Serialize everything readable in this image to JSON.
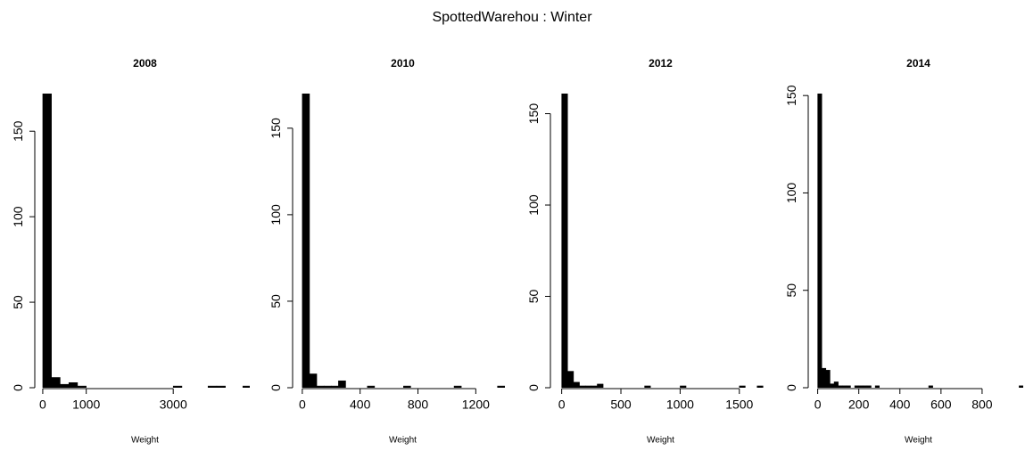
{
  "title": "SpottedWarehou : Winter",
  "chart_data": [
    {
      "type": "histogram",
      "title": "2008",
      "x_label": "Weight",
      "color": "#000000",
      "bins": [
        0,
        200,
        400,
        600,
        800,
        1000,
        1200,
        1400,
        1600,
        1800,
        2000,
        2200,
        2400,
        2600,
        2800,
        3000,
        3200,
        3400,
        3600,
        3800,
        4000,
        4200,
        4400,
        4600,
        4800
      ],
      "values": [
        172,
        6,
        2,
        3,
        1,
        0,
        0,
        0,
        0,
        0,
        0,
        0,
        0,
        0,
        0,
        1,
        0,
        0,
        0,
        1,
        1,
        0,
        0,
        1
      ],
      "xlim": [
        -60,
        4760
      ],
      "xticks": [
        0,
        1000,
        3000
      ],
      "ylim": [
        0,
        172
      ],
      "yticks": [
        0,
        50,
        100,
        150
      ]
    },
    {
      "type": "histogram",
      "title": "2010",
      "x_label": "Weight",
      "color": "#000000",
      "bins": [
        0,
        50,
        100,
        150,
        200,
        250,
        300,
        350,
        400,
        450,
        500,
        550,
        600,
        650,
        700,
        750,
        800,
        850,
        900,
        950,
        1000,
        1050,
        1100,
        1150,
        1200,
        1250,
        1300,
        1350,
        1400
      ],
      "values": [
        170,
        8,
        1,
        1,
        1,
        4,
        0,
        0,
        0,
        1,
        0,
        0,
        0,
        0,
        1,
        0,
        0,
        0,
        0,
        0,
        0,
        1,
        0,
        0,
        0,
        0,
        0,
        1
      ],
      "xlim": [
        -30,
        1420
      ],
      "xticks": [
        0,
        400,
        800,
        1200
      ],
      "ylim": [
        0,
        170
      ],
      "yticks": [
        0,
        50,
        100,
        150
      ]
    },
    {
      "type": "histogram",
      "title": "2012",
      "x_label": "Weight",
      "color": "#000000",
      "bins": [
        0,
        50,
        100,
        150,
        200,
        250,
        300,
        350,
        400,
        450,
        500,
        550,
        600,
        650,
        700,
        750,
        800,
        850,
        900,
        950,
        1000,
        1050,
        1100,
        1150,
        1200,
        1250,
        1300,
        1350,
        1400,
        1450,
        1500,
        1550,
        1600,
        1650,
        1700
      ],
      "values": [
        161,
        9,
        3,
        1,
        1,
        1,
        2,
        0,
        0,
        0,
        0,
        0,
        0,
        0,
        1,
        0,
        0,
        0,
        0,
        0,
        1,
        0,
        0,
        0,
        0,
        0,
        0,
        0,
        0,
        0,
        1,
        0,
        0,
        1
      ],
      "xlim": [
        -50,
        1720
      ],
      "xticks": [
        0,
        500,
        1000,
        1500
      ],
      "ylim": [
        0,
        161
      ],
      "yticks": [
        0,
        50,
        100,
        150
      ]
    },
    {
      "type": "histogram",
      "title": "2014",
      "x_label": "Weight",
      "color": "#000000",
      "bins": [
        0,
        20,
        40,
        60,
        80,
        100,
        120,
        140,
        160,
        180,
        200,
        220,
        240,
        260,
        280,
        300,
        320,
        340,
        360,
        380,
        400,
        420,
        440,
        460,
        480,
        500,
        520,
        540,
        560,
        580,
        600,
        620,
        640,
        660,
        680,
        700,
        720,
        740,
        760,
        780,
        800,
        820,
        840,
        860,
        880,
        900,
        920,
        940,
        960,
        980,
        1000
      ],
      "values": [
        151,
        10,
        9,
        2,
        3,
        1,
        1,
        1,
        0,
        1,
        1,
        1,
        1,
        0,
        1,
        0,
        0,
        0,
        0,
        0,
        0,
        0,
        0,
        0,
        0,
        0,
        0,
        1,
        0,
        0,
        0,
        0,
        0,
        0,
        0,
        0,
        0,
        0,
        0,
        0,
        0,
        0,
        0,
        0,
        0,
        0,
        0,
        0,
        0,
        1
      ],
      "xlim": [
        -20,
        1000
      ],
      "xticks": [
        0,
        200,
        400,
        600,
        800
      ],
      "ylim": [
        0,
        151
      ],
      "yticks": [
        0,
        50,
        100,
        150
      ]
    }
  ]
}
